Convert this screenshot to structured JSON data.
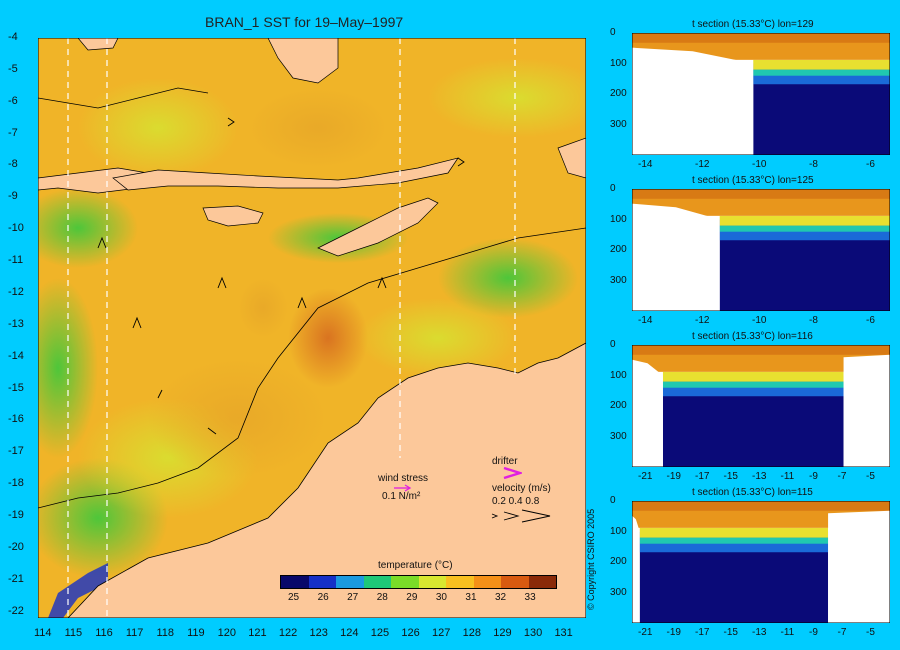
{
  "map": {
    "title": "BRAN_1 SST for 19–May–1997",
    "lat_ticks": [
      "-4",
      "-5",
      "-6",
      "-7",
      "-8",
      "-9",
      "-10",
      "-11",
      "-12",
      "-13",
      "-14",
      "-15",
      "-16",
      "-17",
      "-18",
      "-19",
      "-20",
      "-21",
      "-22"
    ],
    "lon_ticks": [
      "114",
      "115",
      "116",
      "117",
      "118",
      "119",
      "120",
      "121",
      "122",
      "123",
      "124",
      "125",
      "126",
      "127",
      "128",
      "129",
      "130",
      "131"
    ],
    "colorbar_label": "temperature (°C)",
    "colorbar_ticks": [
      "25",
      "26",
      "27",
      "28",
      "29",
      "30",
      "31",
      "32",
      "33"
    ],
    "colorbar_colors": [
      "#08086a",
      "#1530c8",
      "#1a9ae0",
      "#1ec878",
      "#7adc28",
      "#d8e830",
      "#f8c020",
      "#f49018",
      "#d85a10",
      "#8a2a08"
    ],
    "wind_label": "wind stress",
    "wind_unit": "0.1 N/m²",
    "drifter_label": "drifter",
    "velocity_label": "velocity (m/s)",
    "velocity_scale": "0.2 0.4 0.8",
    "land_color": "#fcc89a",
    "sea_color": "#f0b428"
  },
  "sections": [
    {
      "title": "t section (15.33°C) lon=129",
      "x_ticks": [
        "-14",
        "-12",
        "-10",
        "-8",
        "-6"
      ],
      "y_ticks": [
        "0",
        "100",
        "200",
        "300"
      ]
    },
    {
      "title": "t section (15.33°C) lon=125",
      "x_ticks": [
        "-14",
        "-12",
        "-10",
        "-8",
        "-6"
      ],
      "y_ticks": [
        "0",
        "100",
        "200",
        "300"
      ]
    },
    {
      "title": "t section (15.33°C) lon=116",
      "x_ticks": [
        "-21",
        "-19",
        "-17",
        "-15",
        "-13",
        "-11",
        "-9",
        "-7",
        "-5"
      ],
      "y_ticks": [
        "0",
        "100",
        "200",
        "300"
      ]
    },
    {
      "title": "t section (15.33°C) lon=115",
      "x_ticks": [
        "-21",
        "-19",
        "-17",
        "-15",
        "-13",
        "-11",
        "-9",
        "-7",
        "-5"
      ],
      "y_ticks": [
        "0",
        "100",
        "200",
        "300"
      ]
    }
  ],
  "copyright": "© Copyright CSIRO 2005"
}
